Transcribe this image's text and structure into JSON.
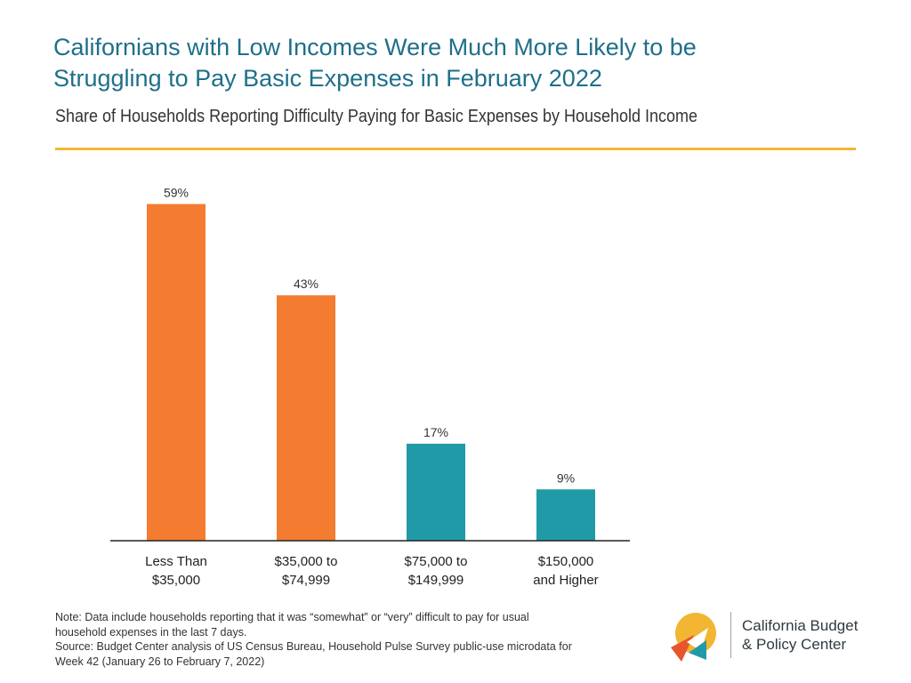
{
  "header": {
    "title_line1": "Californians with Low Incomes Were Much More Likely to be",
    "title_line2": "Struggling to Pay Basic Expenses in February 2022",
    "subtitle": "Share of Households Reporting Difficulty Paying for Basic Expenses by Household Income"
  },
  "colors": {
    "title": "#1f6f8b",
    "rule": "#f2b632",
    "low_income": "#f47c30",
    "high_income": "#219aa8",
    "axis": "#222222"
  },
  "chart_data": {
    "type": "bar",
    "title": "",
    "xlabel": "",
    "ylabel": "",
    "ylim": [
      0,
      60
    ],
    "grid": false,
    "categories": [
      [
        "Less Than",
        "$35,000"
      ],
      [
        "$35,000 to",
        "$74,999"
      ],
      [
        "$75,000 to",
        "$149,999"
      ],
      [
        "$150,000",
        "and Higher"
      ]
    ],
    "values": [
      59,
      43,
      17,
      9
    ],
    "value_labels": [
      "59%",
      "43%",
      "17%",
      "9%"
    ],
    "bar_colors": [
      "#f47c30",
      "#f47c30",
      "#219aa8",
      "#219aa8"
    ]
  },
  "notes": {
    "line1": "Note: Data include households reporting that it was “somewhat” or “very” difficult to pay for usual",
    "line2": "household expenses in the last 7 days.",
    "line3": "Source: Budget Center analysis of US Census Bureau, Household Pulse Survey public-use microdata for",
    "line4": "Week 42 (January 26 to February 7, 2022)"
  },
  "logo": {
    "line1": "California Budget",
    "line2": "& Policy Center"
  }
}
